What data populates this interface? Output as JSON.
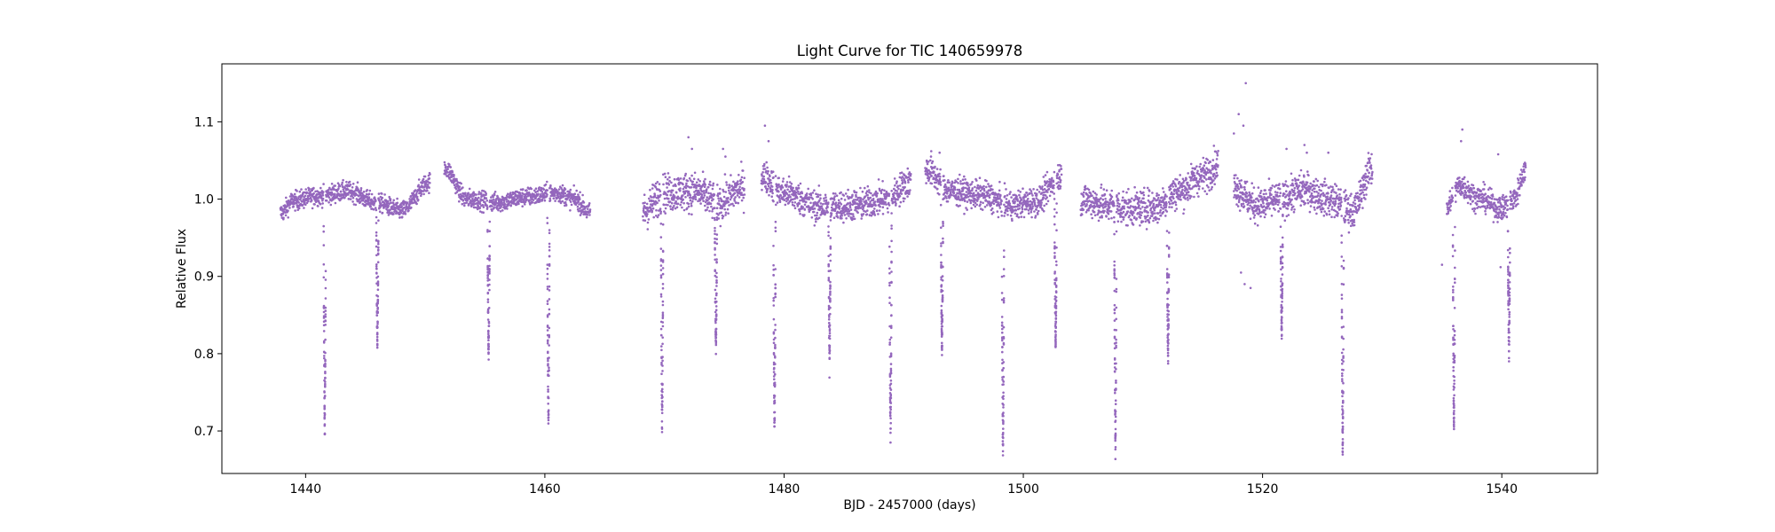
{
  "chart_data": {
    "type": "scatter",
    "title": "Light Curve for TIC 140659978",
    "xlabel": "BJD - 2457000 (days)",
    "ylabel": "Relative Flux",
    "xlim": [
      1433,
      1548
    ],
    "ylim": [
      0.645,
      1.175
    ],
    "xticks": [
      1440,
      1460,
      1480,
      1500,
      1520,
      1540
    ],
    "yticks": [
      0.7,
      0.8,
      0.9,
      1.0,
      1.1
    ],
    "ytick_labels": [
      "0.7",
      "0.8",
      "0.9",
      "1.0",
      "1.1"
    ],
    "grid": false,
    "color": "#9467bd",
    "segments": [
      {
        "start": 1437.9,
        "end": 1450.4,
        "baseline": [
          [
            1437.9,
            0.982
          ],
          [
            1439.0,
            0.998
          ],
          [
            1441.0,
            1.004
          ],
          [
            1443.5,
            1.01
          ],
          [
            1446.0,
            0.995
          ],
          [
            1448.0,
            0.985
          ],
          [
            1450.4,
            1.022
          ]
        ],
        "scatter": 0.006
      },
      {
        "start": 1451.6,
        "end": 1463.8,
        "baseline": [
          [
            1451.6,
            1.04
          ],
          [
            1453.5,
            1.0
          ],
          [
            1456.0,
            0.996
          ],
          [
            1458.5,
            1.003
          ],
          [
            1461.0,
            1.008
          ],
          [
            1462.5,
            1.0
          ],
          [
            1463.8,
            0.982
          ]
        ],
        "scatter": 0.006
      },
      {
        "start": 1468.2,
        "end": 1476.7,
        "baseline": [
          [
            1468.2,
            0.985
          ],
          [
            1470.0,
            1.008
          ],
          [
            1472.5,
            1.01
          ],
          [
            1474.5,
            0.995
          ],
          [
            1476.7,
            1.015
          ]
        ],
        "scatter": 0.012
      },
      {
        "start": 1478.1,
        "end": 1490.6,
        "baseline": [
          [
            1478.1,
            1.03
          ],
          [
            1480.0,
            1.008
          ],
          [
            1483.0,
            0.99
          ],
          [
            1486.0,
            0.992
          ],
          [
            1488.5,
            1.0
          ],
          [
            1490.6,
            1.022
          ]
        ],
        "scatter": 0.01
      },
      {
        "start": 1491.8,
        "end": 1503.2,
        "baseline": [
          [
            1491.8,
            1.038
          ],
          [
            1494.0,
            1.01
          ],
          [
            1496.5,
            1.005
          ],
          [
            1499.0,
            0.992
          ],
          [
            1501.0,
            0.997
          ],
          [
            1503.2,
            1.03
          ]
        ],
        "scatter": 0.009
      },
      {
        "start": 1504.8,
        "end": 1516.3,
        "baseline": [
          [
            1504.8,
            1.0
          ],
          [
            1507.0,
            0.992
          ],
          [
            1509.0,
            0.988
          ],
          [
            1511.0,
            0.99
          ],
          [
            1513.0,
            1.01
          ],
          [
            1515.0,
            1.03
          ],
          [
            1516.3,
            1.045
          ]
        ],
        "scatter": 0.011
      },
      {
        "start": 1517.6,
        "end": 1529.2,
        "baseline": [
          [
            1517.6,
            1.015
          ],
          [
            1519.5,
            0.992
          ],
          [
            1521.5,
            1.0
          ],
          [
            1523.5,
            1.012
          ],
          [
            1525.5,
            1.0
          ],
          [
            1527.5,
            0.985
          ],
          [
            1529.2,
            1.04
          ]
        ],
        "scatter": 0.011
      },
      {
        "start": 1535.4,
        "end": 1542.0,
        "baseline": [
          [
            1535.4,
            0.99
          ],
          [
            1536.5,
            1.018
          ],
          [
            1538.0,
            1.002
          ],
          [
            1540.0,
            0.988
          ],
          [
            1541.0,
            1.0
          ],
          [
            1542.0,
            1.038
          ]
        ],
        "scatter": 0.008
      }
    ],
    "transits": [
      {
        "t": 1441.6,
        "min": 0.698
      },
      {
        "t": 1446.0,
        "min": 0.815
      },
      {
        "t": 1455.3,
        "min": 0.8
      },
      {
        "t": 1460.3,
        "min": 0.698
      },
      {
        "t": 1469.8,
        "min": 0.703
      },
      {
        "t": 1474.3,
        "min": 0.805
      },
      {
        "t": 1479.2,
        "min": 0.692
      },
      {
        "t": 1483.8,
        "min": 0.795
      },
      {
        "t": 1488.9,
        "min": 0.69
      },
      {
        "t": 1493.2,
        "min": 0.805
      },
      {
        "t": 1498.3,
        "min": 0.668
      },
      {
        "t": 1502.7,
        "min": 0.81
      },
      {
        "t": 1507.7,
        "min": 0.675
      },
      {
        "t": 1512.1,
        "min": 0.795
      },
      {
        "t": 1521.6,
        "min": 0.825
      },
      {
        "t": 1526.7,
        "min": 0.675
      },
      {
        "t": 1536.0,
        "min": 0.703
      },
      {
        "t": 1540.6,
        "min": 0.8
      }
    ],
    "outliers": [
      {
        "x": 1518.6,
        "y": 1.15
      },
      {
        "x": 1518.0,
        "y": 1.11
      },
      {
        "x": 1518.4,
        "y": 1.095
      },
      {
        "x": 1517.6,
        "y": 1.085
      },
      {
        "x": 1536.7,
        "y": 1.09
      },
      {
        "x": 1536.6,
        "y": 1.075
      },
      {
        "x": 1478.4,
        "y": 1.095
      },
      {
        "x": 1478.7,
        "y": 1.075
      },
      {
        "x": 1472.0,
        "y": 1.08
      },
      {
        "x": 1472.3,
        "y": 1.065
      },
      {
        "x": 1474.9,
        "y": 1.065
      },
      {
        "x": 1475.1,
        "y": 1.055
      },
      {
        "x": 1518.5,
        "y": 0.89
      },
      {
        "x": 1519.0,
        "y": 0.885
      },
      {
        "x": 1518.2,
        "y": 0.905
      },
      {
        "x": 1522.0,
        "y": 1.065
      },
      {
        "x": 1523.5,
        "y": 1.07
      },
      {
        "x": 1523.7,
        "y": 1.06
      },
      {
        "x": 1525.5,
        "y": 1.06
      },
      {
        "x": 1535.0,
        "y": 0.915
      },
      {
        "x": 1539.7,
        "y": 1.058
      },
      {
        "x": 1539.9,
        "y": 0.912
      },
      {
        "x": 1492.3,
        "y": 1.062
      },
      {
        "x": 1493.0,
        "y": 1.06
      }
    ]
  }
}
